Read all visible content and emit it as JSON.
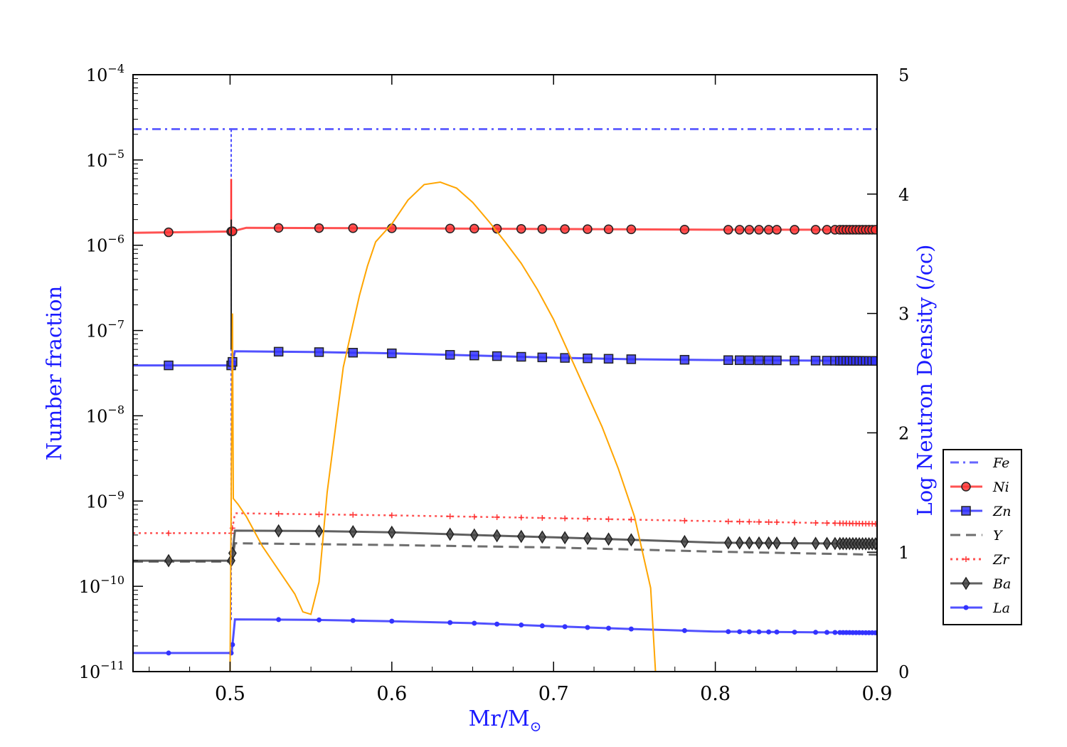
{
  "chart_data": {
    "type": "line",
    "xlabel": "Mr/M",
    "xlabel_sub": "⊙",
    "ylabel": "Number fraction",
    "ylabel_right": "Log Neutron Density (/cc)",
    "xlim": [
      0.44,
      0.9
    ],
    "ylim": [
      1e-11,
      0.0001
    ],
    "ylim_right": [
      0,
      5
    ],
    "yscale": "log",
    "x_ticks": [
      0.5,
      0.6,
      0.7,
      0.8,
      0.9
    ],
    "x_tick_labels": [
      "0.5",
      "0.6",
      "0.7",
      "0.8",
      "0.9"
    ],
    "y_ticks": [
      {
        "value": 0.0001,
        "base": "10",
        "exp": "−4"
      },
      {
        "value": 1e-05,
        "base": "10",
        "exp": "−5"
      },
      {
        "value": 1e-06,
        "base": "10",
        "exp": "−6"
      },
      {
        "value": 1e-07,
        "base": "10",
        "exp": "−7"
      },
      {
        "value": 1e-08,
        "base": "10",
        "exp": "−8"
      },
      {
        "value": 1e-09,
        "base": "10",
        "exp": "−9"
      },
      {
        "value": 1e-10,
        "base": "10",
        "exp": "−10"
      },
      {
        "value": 1e-11,
        "base": "10",
        "exp": "−11"
      }
    ],
    "y_right_ticks": [
      0,
      1,
      2,
      3,
      4,
      5
    ],
    "y_right_tick_labels": [
      "0",
      "1",
      "2",
      "3",
      "4",
      "5"
    ],
    "legend_position": "right, outside axes",
    "grid": false,
    "marker_x": [
      0.53,
      0.555,
      0.576,
      0.6,
      0.636,
      0.651,
      0.665,
      0.68,
      0.693,
      0.707,
      0.721,
      0.734,
      0.748,
      0.781,
      0.808,
      0.815,
      0.821,
      0.827,
      0.833,
      0.838,
      0.849,
      0.862,
      0.869,
      0.874,
      0.877,
      0.879,
      0.881,
      0.883,
      0.885,
      0.887,
      0.889,
      0.891,
      0.893,
      0.895,
      0.897,
      0.899
    ],
    "series": [
      {
        "name": "Fe",
        "color": "#4b4bff",
        "style": "dashdot",
        "marker": "none",
        "x": [
          0.44,
          0.9
        ],
        "y": [
          2.3e-05,
          2.3e-05
        ]
      },
      {
        "name": "Ni",
        "color": "#ff3333",
        "style": "solid",
        "marker": "circle",
        "x": [
          0.44,
          0.501,
          0.51,
          0.6,
          0.7,
          0.8,
          0.9
        ],
        "y": [
          1.4e-06,
          1.45e-06,
          1.6e-06,
          1.58e-06,
          1.55e-06,
          1.52e-06,
          1.52e-06
        ]
      },
      {
        "name": "Zn",
        "color": "#3333ff",
        "style": "solid",
        "marker": "square",
        "x": [
          0.44,
          0.501,
          0.503,
          0.55,
          0.6,
          0.65,
          0.7,
          0.75,
          0.8,
          0.9
        ],
        "y": [
          3.9e-08,
          3.9e-08,
          5.7e-08,
          5.6e-08,
          5.4e-08,
          5.1e-08,
          4.8e-08,
          4.6e-08,
          4.5e-08,
          4.4e-08
        ]
      },
      {
        "name": "Y",
        "color": "#555555",
        "style": "dashed",
        "marker": "none",
        "x": [
          0.44,
          0.501,
          0.503,
          0.6,
          0.7,
          0.8,
          0.9
        ],
        "y": [
          1.95e-10,
          1.95e-10,
          3.2e-10,
          3.05e-10,
          2.85e-10,
          2.55e-10,
          2.35e-10
        ]
      },
      {
        "name": "Zr",
        "color": "#ff3333",
        "style": "dotted",
        "marker": "plus",
        "x": [
          0.44,
          0.501,
          0.503,
          0.6,
          0.7,
          0.8,
          0.9
        ],
        "y": [
          4.2e-10,
          4.2e-10,
          7.2e-10,
          6.8e-10,
          6.3e-10,
          5.8e-10,
          5.4e-10
        ]
      },
      {
        "name": "Ba",
        "color": "#444444",
        "style": "solid",
        "marker": "diamond",
        "x": [
          0.44,
          0.501,
          0.503,
          0.55,
          0.6,
          0.65,
          0.7,
          0.75,
          0.8,
          0.9
        ],
        "y": [
          2e-10,
          2e-10,
          4.5e-10,
          4.45e-10,
          4.3e-10,
          4e-10,
          3.75e-10,
          3.5e-10,
          3.25e-10,
          3.15e-10
        ]
      },
      {
        "name": "La",
        "color": "#3333ff",
        "style": "solid",
        "marker": "dot",
        "x": [
          0.44,
          0.501,
          0.503,
          0.55,
          0.6,
          0.65,
          0.7,
          0.75,
          0.8,
          0.9
        ],
        "y": [
          1.65e-11,
          1.65e-11,
          4.1e-11,
          4.05e-11,
          3.9e-11,
          3.7e-11,
          3.4e-11,
          3.15e-11,
          2.95e-11,
          2.85e-11
        ]
      }
    ],
    "neutron_density": {
      "color": "#ffa500",
      "axis": "right",
      "x": [
        0.5,
        0.5015,
        0.502,
        0.505,
        0.51,
        0.52,
        0.53,
        0.54,
        0.545,
        0.55,
        0.555,
        0.56,
        0.57,
        0.58,
        0.585,
        0.59,
        0.6,
        0.61,
        0.62,
        0.63,
        0.64,
        0.65,
        0.66,
        0.67,
        0.68,
        0.69,
        0.7,
        0.71,
        0.72,
        0.73,
        0.74,
        0.75,
        0.76,
        0.763
      ],
      "y": [
        0.0,
        3.0,
        1.45,
        1.4,
        1.3,
        1.05,
        0.85,
        0.65,
        0.5,
        0.48,
        0.75,
        1.5,
        2.55,
        3.15,
        3.4,
        3.6,
        3.75,
        3.95,
        4.08,
        4.1,
        4.05,
        3.93,
        3.77,
        3.6,
        3.42,
        3.2,
        2.95,
        2.65,
        2.35,
        2.05,
        1.7,
        1.3,
        0.7,
        0.0
      ]
    }
  }
}
